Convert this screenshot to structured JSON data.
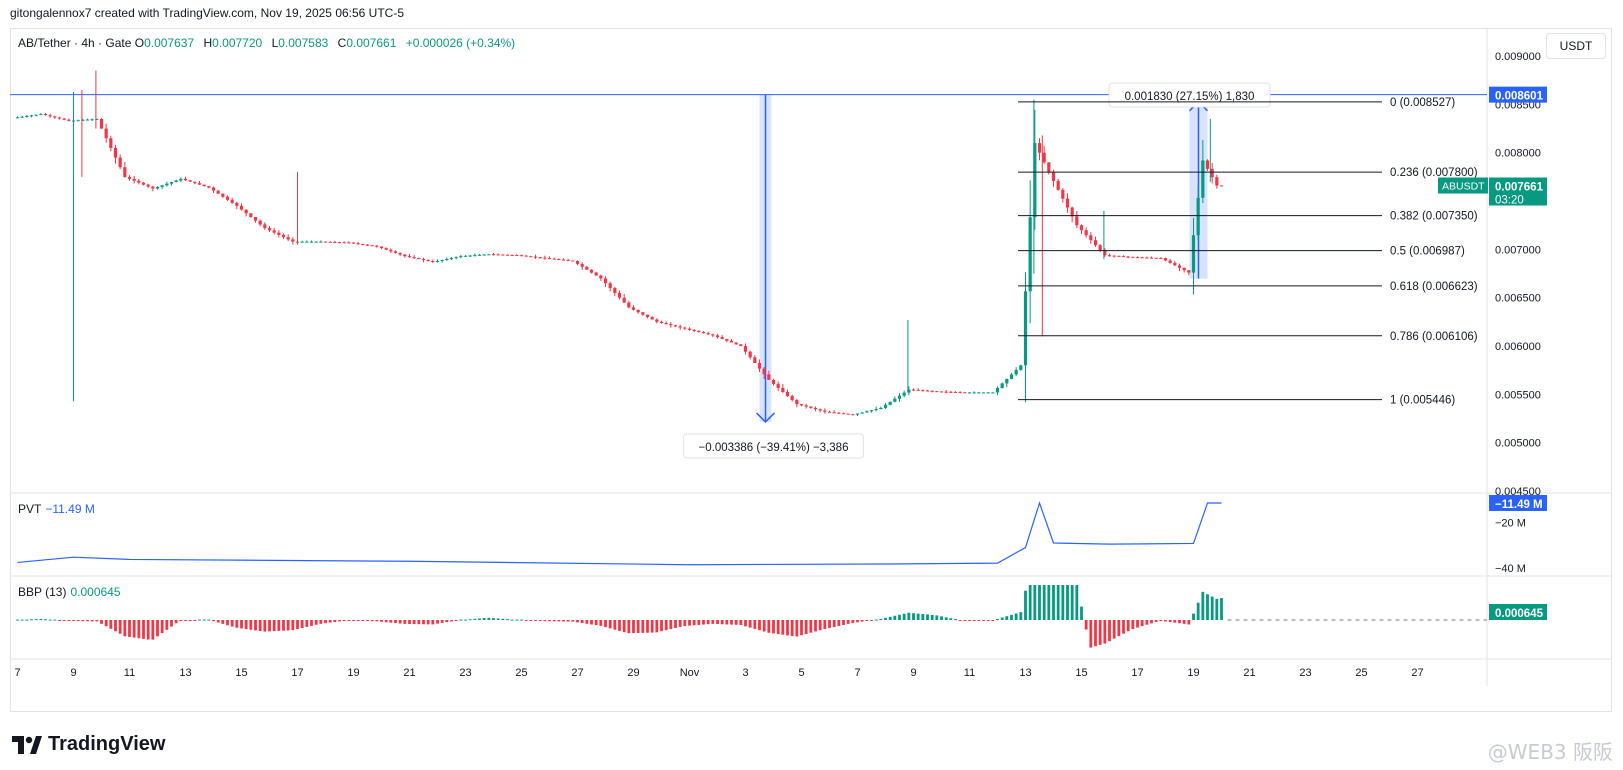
{
  "header": {
    "created_by": "gitongalennox7 created with TradingView.com, Nov 19, 2025 06:56 UTC-5",
    "unit_button": "USDT"
  },
  "legend": {
    "symbol": "AB/Tether · 4h · Gate",
    "o_label": "O",
    "o_value": "0.007637",
    "h_label": "H",
    "h_value": "0.007720",
    "l_label": "L",
    "l_value": "0.007583",
    "c_label": "C",
    "c_value": "0.007661",
    "change": "+0.000026 (+0.34%)"
  },
  "pvt": {
    "label": "PVT",
    "value": "−11.49 M",
    "badge": "−11.49 M",
    "ticks": [
      "−20 M",
      "−40 M"
    ]
  },
  "bbp": {
    "label": "BBP (13)",
    "value": "0.000645",
    "badge": "0.000645"
  },
  "price_badges": {
    "line_level": "0.008601",
    "symbol": "ABUSDT",
    "last_price": "0.007661",
    "countdown": "03:20"
  },
  "measures": {
    "down": "−0.003386 (−39.41%) −3,386",
    "up": "0.001830 (27.15%) 1,830"
  },
  "fib_labels": [
    "0 (0.008527)",
    "0.236 (0.007800)",
    "0.382 (0.007350)",
    "0.5 (0.006987)",
    "0.618 (0.006623)",
    "0.786 (0.006106)",
    "1 (0.005446)"
  ],
  "footer": {
    "brand": "TradingView",
    "watermark": "@WEB3 阪阪"
  },
  "colors": {
    "up": "#089981",
    "down": "#f23645",
    "line": "#2962ff",
    "fib": "#131722"
  },
  "chart_data": {
    "type": "candlestick",
    "symbol": "AB/Tether",
    "interval": "4h",
    "exchange": "Gate",
    "y_ticks": [
      "0.009000",
      "0.008500",
      "0.008000",
      "0.007500",
      "0.007000",
      "0.006500",
      "0.006000",
      "0.005500",
      "0.005000",
      "0.004500"
    ],
    "x_ticks": [
      "7",
      "9",
      "11",
      "13",
      "15",
      "17",
      "19",
      "21",
      "23",
      "25",
      "27",
      "29",
      "Nov",
      "3",
      "5",
      "7",
      "9",
      "11",
      "13",
      "15",
      "17",
      "19",
      "21",
      "23",
      "25",
      "27"
    ],
    "ylim": [
      0.00449,
      0.00927
    ],
    "x_range_days": [
      "Oct 7",
      "Nov 27"
    ],
    "horizontal_line": 0.008601,
    "fib_levels": [
      0.008527,
      0.0078,
      0.00735,
      0.006987,
      0.006623,
      0.006106,
      0.005446
    ],
    "price_path": [
      [
        "Oct 7",
        0.00836
      ],
      [
        "Oct 8",
        0.0084
      ],
      [
        "Oct 9",
        0.00833
      ],
      [
        "Oct 10",
        0.00835
      ],
      [
        "Oct 11",
        0.00775
      ],
      [
        "Oct 12",
        0.00763
      ],
      [
        "Oct 13",
        0.00773
      ],
      [
        "Oct 14",
        0.00764
      ],
      [
        "Oct 15",
        0.00745
      ],
      [
        "Oct 16",
        0.00722
      ],
      [
        "Oct 17",
        0.00708
      ],
      [
        "Oct 18",
        0.00708
      ],
      [
        "Oct 19",
        0.00707
      ],
      [
        "Oct 20",
        0.00703
      ],
      [
        "Oct 21",
        0.00693
      ],
      [
        "Oct 22",
        0.00687
      ],
      [
        "Oct 23",
        0.00693
      ],
      [
        "Oct 24",
        0.00695
      ],
      [
        "Oct 25",
        0.00694
      ],
      [
        "Oct 26",
        0.00691
      ],
      [
        "Oct 27",
        0.00688
      ],
      [
        "Oct 28",
        0.0067
      ],
      [
        "Oct 29",
        0.0064
      ],
      [
        "Oct 30",
        0.00625
      ],
      [
        "Oct 31",
        0.00618
      ],
      [
        "Nov 1",
        0.00611
      ],
      [
        "Nov 2",
        0.006
      ],
      [
        "Nov 3",
        0.00565
      ],
      [
        "Nov 4",
        0.0054
      ],
      [
        "Nov 5",
        0.00532
      ],
      [
        "Nov 6",
        0.00529
      ],
      [
        "Nov 7",
        0.00536
      ],
      [
        "Nov 8",
        0.00555
      ],
      [
        "Nov 9",
        0.00553
      ],
      [
        "Nov 10",
        0.00552
      ],
      [
        "Nov 11",
        0.00552
      ],
      [
        "Nov 12",
        0.0058
      ],
      [
        "Nov 12.5",
        0.0081
      ],
      [
        "Nov 13",
        0.0078
      ],
      [
        "Nov 14",
        0.00725
      ],
      [
        "Nov 15",
        0.00694
      ],
      [
        "Nov 16",
        0.00692
      ],
      [
        "Nov 17",
        0.00691
      ],
      [
        "Nov 18",
        0.00676
      ],
      [
        "Nov 18.5",
        0.00792
      ],
      [
        "Nov 19",
        0.007661
      ]
    ],
    "pvt_series": [
      [
        "Oct 7",
        -37.5
      ],
      [
        "Oct 9",
        -35.2
      ],
      [
        "Oct 11",
        -36.2
      ],
      [
        "Oct 21",
        -37.0
      ],
      [
        "Oct 31",
        -38.5
      ],
      [
        "Nov 7",
        -38.2
      ],
      [
        "Nov 11",
        -37.8
      ],
      [
        "Nov 12",
        -31.0
      ],
      [
        "Nov 12.5",
        -11.49
      ],
      [
        "Nov 13",
        -29.0
      ],
      [
        "Nov 15",
        -29.5
      ],
      [
        "Nov 18",
        -29.2
      ],
      [
        "Nov 18.5",
        -11.49
      ],
      [
        "Nov 19",
        -11.49
      ]
    ],
    "bbp_last": 0.000645
  }
}
